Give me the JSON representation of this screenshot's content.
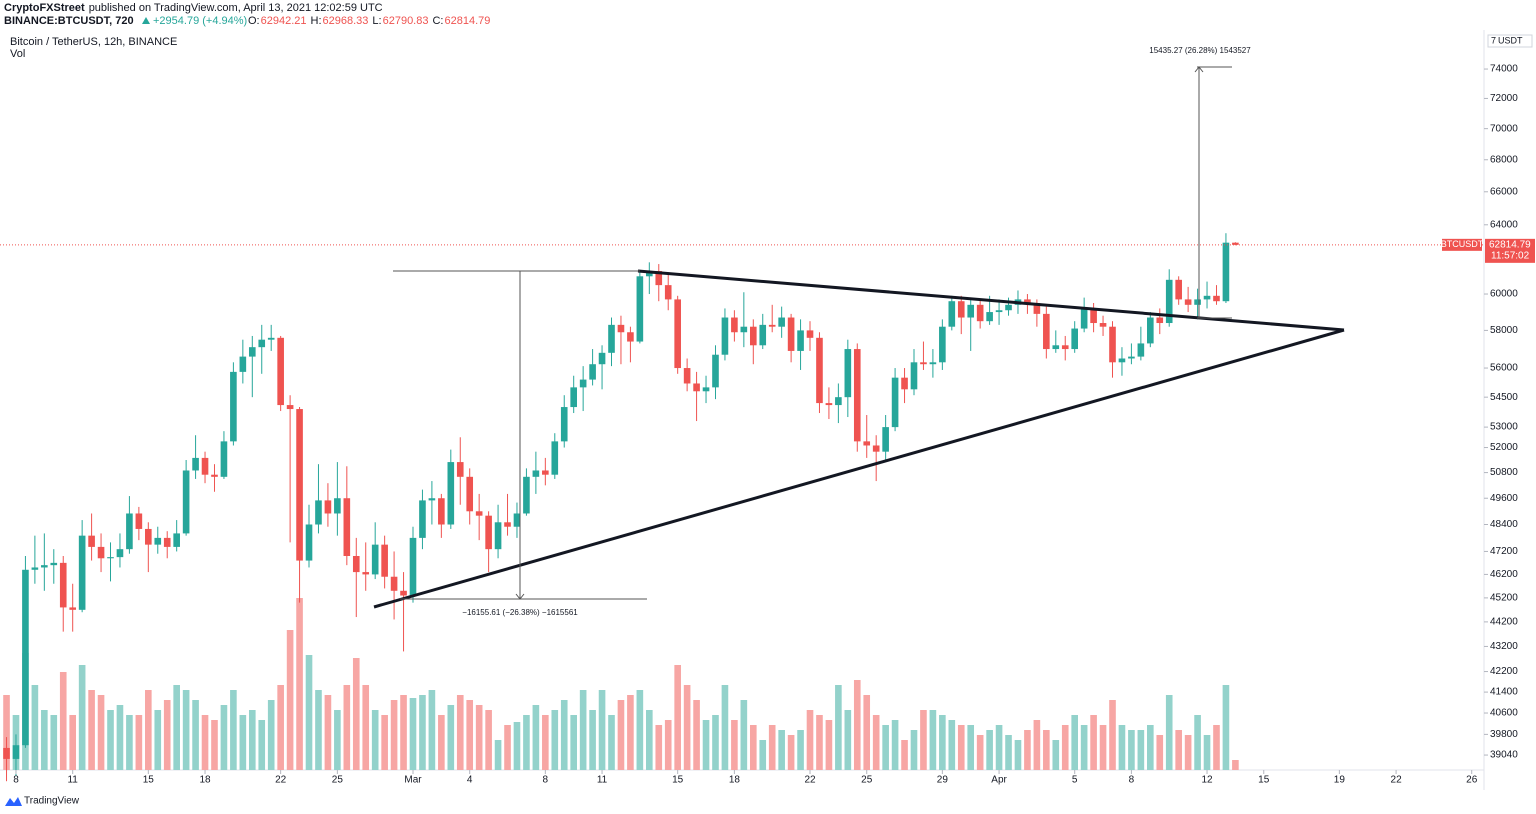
{
  "header": {
    "publisher": "CryptoFXStreet",
    "published": "published on TradingView.com, April 13, 2021 12:02:59 UTC",
    "symbol": "BINANCE:BTCUSDT, 720",
    "change": "+2954.79 (+4.94%)",
    "ohlc_labels": [
      "O:",
      "H:",
      "L:",
      "C:"
    ]
  },
  "footer": {
    "brand": "TradingView"
  },
  "chart_data": {
    "type": "candlestick",
    "title": "Bitcoin / TetherUS, 12h, BINANCE",
    "volume_label": "Vol",
    "symbol_label": "BTCUSDT",
    "countdown": "11:57:02",
    "currency": "USDT",
    "axis_badge": "7",
    "annotations": [
      "15435.27 (26.28%) 1543527",
      "−16155.61 (−26.38%) −1615561"
    ],
    "log_scale": true,
    "grid": false,
    "up_color": "#26a69a",
    "down_color": "#ef5350",
    "volume_up_color": "#93d2cb",
    "volume_down_color": "#f7a6a4",
    "ylim": [
      38500,
      76600
    ],
    "yticks": [
      74000,
      72000,
      70000,
      68000,
      66000,
      64000,
      60000,
      58000,
      56000,
      54500,
      53000,
      52000,
      50800,
      49600,
      48400,
      47200,
      46200,
      45200,
      44200,
      43200,
      42200,
      41400,
      40600,
      39800,
      39040
    ],
    "xlim": [
      -0.69,
      156.3
    ],
    "xticks": [
      {
        "value": 1,
        "label": "8"
      },
      {
        "value": 7,
        "label": "11"
      },
      {
        "value": 15,
        "label": "15"
      },
      {
        "value": 21,
        "label": "18"
      },
      {
        "value": 29,
        "label": "22"
      },
      {
        "value": 35,
        "label": "25"
      },
      {
        "value": 43,
        "label": "Mar"
      },
      {
        "value": 49,
        "label": "4"
      },
      {
        "value": 57,
        "label": "8"
      },
      {
        "value": 63,
        "label": "11"
      },
      {
        "value": 71,
        "label": "15"
      },
      {
        "value": 77,
        "label": "18"
      },
      {
        "value": 85,
        "label": "22"
      },
      {
        "value": 91,
        "label": "25"
      },
      {
        "value": 99,
        "label": "29"
      },
      {
        "value": 105,
        "label": "Apr"
      },
      {
        "value": 113,
        "label": "5"
      },
      {
        "value": 119,
        "label": "8"
      },
      {
        "value": 127,
        "label": "12"
      },
      {
        "value": 133,
        "label": "15"
      },
      {
        "value": 141,
        "label": "19"
      },
      {
        "value": 147,
        "label": "22"
      },
      {
        "value": 155,
        "label": "26"
      }
    ],
    "open": [
      39300,
      38900,
      39400,
      46400,
      46500,
      46600,
      46700,
      44800,
      44700,
      47900,
      47400,
      46900,
      46950,
      47300,
      48900,
      48200,
      47500,
      47800,
      47400,
      48000,
      50900,
      51500,
      50700,
      50600,
      52300,
      55800,
      56600,
      57100,
      57500,
      57600,
      54100,
      53900,
      46800,
      48400,
      49500,
      48900,
      49600,
      47000,
      46300,
      46200,
      47500,
      46100,
      45500,
      45300,
      47800,
      49500,
      49600,
      48400,
      51300,
      50600,
      49000,
      48800,
      47300,
      48500,
      48300,
      48900,
      50600,
      50900,
      50700,
      52300,
      54000,
      55000,
      55400,
      56200,
      56800,
      58300,
      57900,
      57400,
      61000,
      61300,
      60500,
      59700,
      56000,
      55200,
      54800,
      55000,
      56700,
      58700,
      57900,
      58200,
      57200,
      58300,
      58200,
      58700,
      56900,
      58000,
      57600,
      54200,
      54100,
      54500,
      57000,
      52300,
      52100,
      51800,
      53000,
      55500,
      54900,
      56300,
      56200,
      56300,
      58200,
      59600,
      58700,
      59400,
      58500,
      59000,
      59100,
      59400,
      59700,
      59500,
      58900,
      57000,
      57200,
      57000,
      58100,
      59200,
      58400,
      58200,
      56300,
      56500,
      56600,
      57300,
      58700,
      58400,
      60800,
      59700,
      59400,
      59700,
      59900,
      59600,
      62942.21
    ],
    "high": [
      39700,
      39800,
      47000,
      47900,
      48000,
      47300,
      47000,
      45800,
      48600,
      48900,
      48000,
      47600,
      48000,
      49700,
      49200,
      48500,
      48300,
      48100,
      48600,
      51400,
      52600,
      51800,
      51200,
      52800,
      56300,
      57500,
      57700,
      58300,
      58300,
      57700,
      54600,
      54000,
      49300,
      51200,
      50300,
      51300,
      51100,
      47800,
      47600,
      48500,
      47900,
      47200,
      46300,
      48300,
      50000,
      50400,
      49800,
      51900,
      52500,
      51000,
      49800,
      49000,
      49300,
      49800,
      49400,
      51000,
      51800,
      51500,
      52700,
      54600,
      55600,
      56100,
      57000,
      57200,
      58700,
      58800,
      58200,
      61300,
      61800,
      61700,
      61200,
      59900,
      56500,
      55800,
      55600,
      57200,
      59200,
      59100,
      60100,
      58600,
      58900,
      59400,
      59300,
      58900,
      58600,
      58500,
      57900,
      55000,
      55200,
      57500,
      57300,
      53600,
      52600,
      53600,
      56000,
      56000,
      57000,
      57400,
      57000,
      58600,
      59900,
      59900,
      59800,
      59700,
      59900,
      59700,
      59800,
      60200,
      60000,
      59700,
      59300,
      58000,
      57700,
      58500,
      59800,
      59500,
      58800,
      58500,
      57100,
      57300,
      58200,
      59000,
      59200,
      61400,
      61000,
      60400,
      60300,
      60700,
      60500,
      63500,
      62968.33
    ],
    "low": [
      38100,
      38300,
      39300,
      45800,
      45500,
      45800,
      43800,
      43800,
      44600,
      46800,
      46300,
      45900,
      46500,
      47100,
      47700,
      46300,
      47100,
      46900,
      47200,
      47900,
      50500,
      50300,
      49900,
      50500,
      52100,
      55200,
      54500,
      55700,
      56900,
      53800,
      47600,
      45000,
      46500,
      48000,
      48300,
      47900,
      46600,
      44400,
      45500,
      46000,
      45600,
      44300,
      43000,
      45000,
      47300,
      48400,
      47800,
      48200,
      49300,
      48400,
      47700,
      46300,
      46900,
      47900,
      47800,
      48800,
      49800,
      50200,
      50500,
      52000,
      53700,
      53800,
      55100,
      54900,
      56100,
      56200,
      56300,
      57300,
      60000,
      59600,
      59100,
      55700,
      54800,
      53300,
      54200,
      54400,
      56400,
      57400,
      57100,
      56200,
      57000,
      57900,
      57600,
      56300,
      55900,
      56900,
      53700,
      53400,
      53200,
      53500,
      51800,
      51500,
      50400,
      51300,
      52800,
      54200,
      54600,
      55900,
      55500,
      55900,
      58000,
      57800,
      56900,
      58100,
      58300,
      58300,
      58800,
      58900,
      58900,
      58200,
      56500,
      56800,
      56400,
      56800,
      57900,
      57900,
      57700,
      55500,
      55600,
      56200,
      56400,
      57100,
      57800,
      58200,
      59400,
      59000,
      58600,
      59200,
      59400,
      59500,
      62790.83
    ],
    "close": [
      38900,
      39400,
      46400,
      46500,
      46600,
      46700,
      44800,
      44700,
      47900,
      47400,
      46900,
      46950,
      47300,
      48900,
      48200,
      47500,
      47800,
      47400,
      48000,
      50900,
      51500,
      50700,
      50600,
      52300,
      55800,
      56600,
      57100,
      57500,
      57600,
      54100,
      53900,
      46800,
      48400,
      49500,
      48900,
      49600,
      47000,
      46300,
      46200,
      47500,
      46100,
      45500,
      45300,
      47800,
      49500,
      49600,
      48400,
      51300,
      50600,
      49000,
      48800,
      47300,
      48500,
      48300,
      48900,
      50600,
      50900,
      50700,
      52300,
      54000,
      55000,
      55400,
      56200,
      56800,
      58300,
      57900,
      57400,
      61000,
      61300,
      60500,
      59700,
      56000,
      55200,
      54800,
      55000,
      56700,
      58700,
      57900,
      58200,
      57200,
      58300,
      58200,
      58700,
      56900,
      58000,
      57600,
      54200,
      54100,
      54500,
      57000,
      52300,
      52100,
      51800,
      53000,
      55500,
      54900,
      56300,
      56200,
      56300,
      58200,
      59600,
      58700,
      59400,
      58500,
      59000,
      59100,
      59400,
      59700,
      59500,
      58900,
      57000,
      57200,
      57000,
      58100,
      59200,
      58400,
      58200,
      56300,
      56500,
      56600,
      57300,
      58700,
      58400,
      60800,
      59700,
      59400,
      59700,
      59900,
      59600,
      62942.21,
      62814.79
    ],
    "volume": [
      75,
      55,
      117,
      85,
      60,
      55,
      98,
      55,
      105,
      80,
      75,
      60,
      65,
      55,
      55,
      80,
      60,
      70,
      85,
      80,
      70,
      55,
      50,
      65,
      80,
      55,
      60,
      50,
      70,
      85,
      140,
      172,
      115,
      80,
      75,
      60,
      85,
      112,
      85,
      60,
      55,
      70,
      75,
      72,
      75,
      80,
      55,
      65,
      75,
      70,
      65,
      60,
      30,
      45,
      48,
      55,
      65,
      55,
      60,
      70,
      55,
      80,
      60,
      80,
      55,
      70,
      75,
      80,
      60,
      45,
      50,
      105,
      85,
      70,
      50,
      55,
      85,
      50,
      70,
      45,
      30,
      45,
      40,
      35,
      40,
      60,
      55,
      50,
      85,
      60,
      90,
      75,
      55,
      45,
      50,
      30,
      40,
      60,
      60,
      55,
      50,
      45,
      45,
      35,
      40,
      45,
      35,
      30,
      40,
      50,
      40,
      30,
      45,
      55,
      45,
      55,
      45,
      70,
      45,
      40,
      40,
      45,
      35,
      75,
      40,
      35,
      55,
      35,
      45,
      85,
      10
    ]
  }
}
